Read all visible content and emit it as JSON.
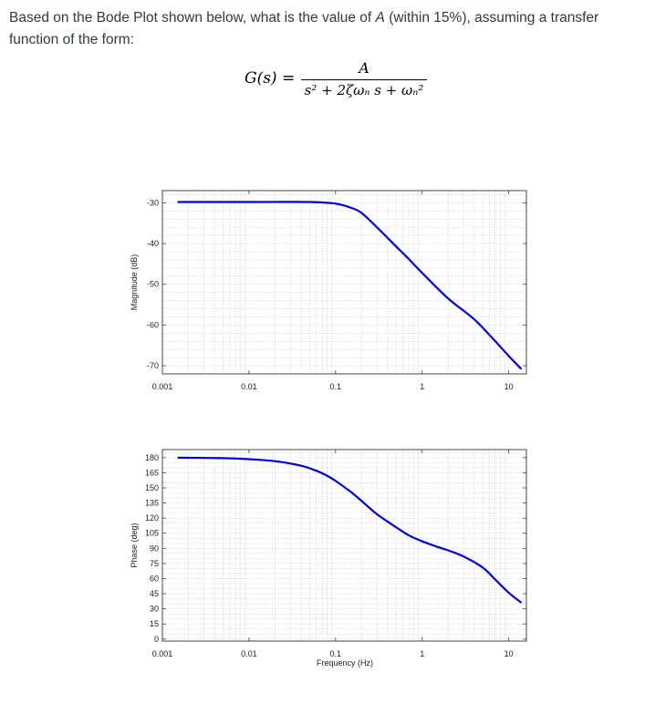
{
  "question": {
    "line1_pre": "Based on the Bode Plot shown below, what is the value of ",
    "var": "A",
    "line1_post": " (within 15%), assuming a transfer",
    "line2": "function of the form:"
  },
  "formula": {
    "lhs": "G(s) =",
    "numerator": "A",
    "denominator": "s² + 2ζωₙ s + ωₙ²"
  },
  "chart_data": [
    {
      "type": "line",
      "title": "",
      "xlabel": "",
      "ylabel": "Magnitude (dB)",
      "xscale": "log",
      "xlim": [
        0.001,
        16
      ],
      "ylim": [
        -72,
        -27
      ],
      "xticks": [
        0.001,
        0.01,
        0.1,
        1,
        10
      ],
      "xtick_labels": [
        "0.001",
        "0.01",
        "0.1",
        "1",
        "10"
      ],
      "yticks": [
        -30,
        -40,
        -50,
        -60,
        -70
      ],
      "ytick_labels": [
        "-30",
        "-40",
        "-50",
        "-60",
        "-70"
      ],
      "grid": true,
      "line_color": "#0000dd",
      "series": [
        {
          "x": [
            0.0015,
            0.01,
            0.05,
            0.1,
            0.15,
            0.2,
            0.3,
            0.5,
            0.7,
            1,
            2,
            4,
            7,
            10,
            14
          ],
          "values": [
            -29.8,
            -29.8,
            -29.8,
            -30.2,
            -31.2,
            -32.5,
            -36.0,
            -40.7,
            -43.8,
            -47.2,
            -53.5,
            -58.6,
            -64.0,
            -67.6,
            -70.8
          ]
        }
      ]
    },
    {
      "type": "line",
      "title": "",
      "xlabel": "Frequency (Hz)",
      "ylabel": "Phase (deg)",
      "xscale": "log",
      "xlim": [
        0.001,
        16
      ],
      "ylim": [
        -2,
        188
      ],
      "xticks": [
        0.001,
        0.01,
        0.1,
        1,
        10
      ],
      "xtick_labels": [
        "0.001",
        "0.01",
        "0.1",
        "1",
        "10"
      ],
      "yticks": [
        180,
        165,
        150,
        135,
        120,
        105,
        90,
        75,
        60,
        45,
        30,
        15,
        0
      ],
      "ytick_labels": [
        "180",
        "165",
        "150",
        "135",
        "120",
        "105",
        "90",
        "75",
        "60",
        "45",
        "30",
        "15",
        "0"
      ],
      "grid": true,
      "line_color": "#0000dd",
      "series": [
        {
          "x": [
            0.0015,
            0.005,
            0.01,
            0.02,
            0.04,
            0.06,
            0.08,
            0.1,
            0.15,
            0.2,
            0.3,
            0.5,
            0.7,
            1,
            1.5,
            2,
            3,
            5,
            7,
            10,
            14
          ],
          "values": [
            180,
            179.5,
            178.5,
            176.5,
            172,
            167,
            162,
            157,
            146,
            137,
            124,
            111,
            103,
            97,
            91.5,
            88,
            82,
            71,
            59,
            46,
            36
          ]
        }
      ]
    }
  ]
}
